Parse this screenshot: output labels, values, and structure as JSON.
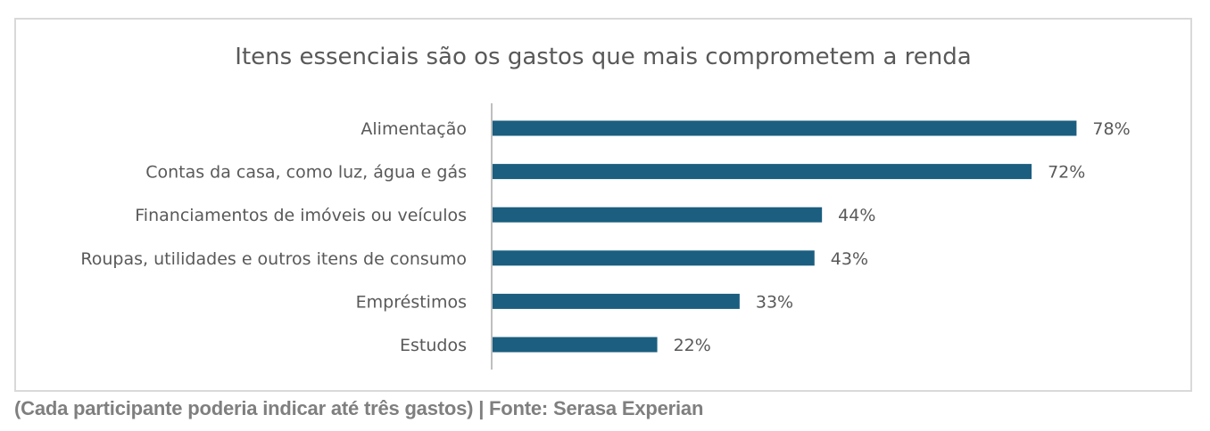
{
  "chart_data": {
    "type": "bar",
    "orientation": "horizontal",
    "title": "Itens essenciais são os gastos que mais comprometem a renda",
    "categories": [
      "Alimentação",
      "Contas da casa, como luz, água e gás",
      "Financiamentos de imóveis ou veículos",
      "Roupas, utilidades e outros itens de consumo",
      "Empréstimos",
      "Estudos"
    ],
    "values": [
      78,
      72,
      44,
      43,
      33,
      22
    ],
    "value_labels": [
      "78%",
      "72%",
      "44%",
      "43%",
      "33%",
      "22%"
    ],
    "unit": "%",
    "xlim": [
      0,
      100
    ],
    "bar_color": "#1b5e7f",
    "grid": false,
    "legend": "none"
  },
  "caption": "(Cada participante poderia indicar até três gastos) | Fonte: Serasa Experian"
}
